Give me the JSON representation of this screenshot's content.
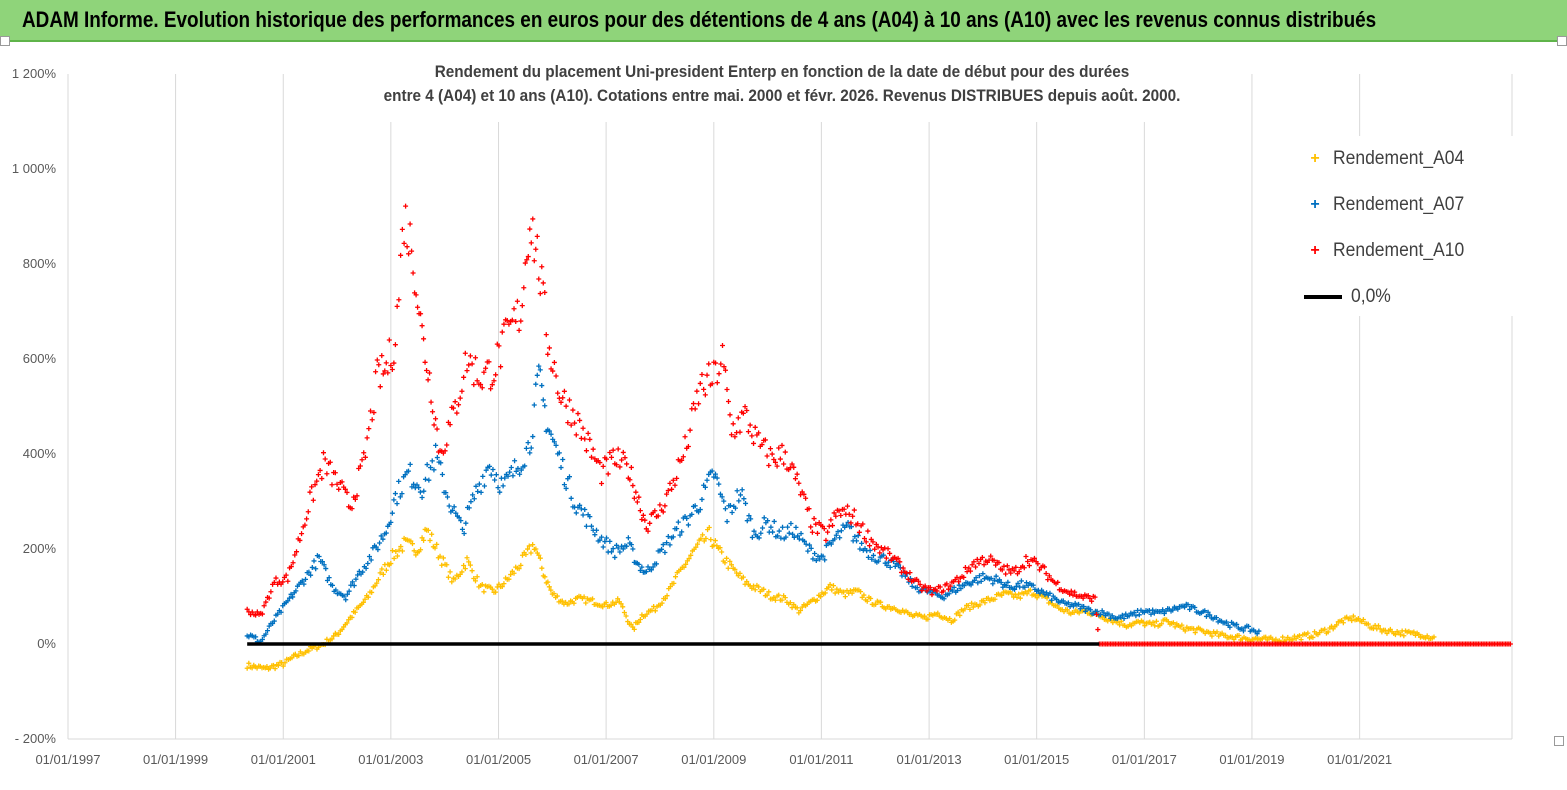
{
  "banner": {
    "title": "ADAM Informe. Evolution historique des performances en euros pour des détentions de 4 ans (A04) à 10 ans (A10) avec les revenus connus distribués",
    "background": "#8fd47a"
  },
  "chart_data": {
    "type": "scatter",
    "title_line1": "Rendement du placement Uni-president Enterp  en fonction de la date de début pour des durées",
    "title_line2": "entre 4 (A04) et 10 ans (A10).  Cotations entre mai. 2000 et févr. 2026. Revenus DISTRIBUES  depuis août. 2000.",
    "xlabel": "",
    "ylabel": "",
    "x_range": [
      "1997-01-01",
      "2023-11-01"
    ],
    "y_range": [
      -200,
      1200
    ],
    "y_unit": "%",
    "y_ticks": [
      {
        "value": 1200,
        "label": "1 200%"
      },
      {
        "value": 1000,
        "label": "1 000%"
      },
      {
        "value": 800,
        "label": "800%"
      },
      {
        "value": 600,
        "label": "600%"
      },
      {
        "value": 400,
        "label": "400%"
      },
      {
        "value": 200,
        "label": "200%"
      },
      {
        "value": 0,
        "label": "0%"
      },
      {
        "value": -200,
        "label": "- 200%"
      }
    ],
    "x_ticks": [
      {
        "date": "1997-01-01",
        "label": "01/01/1997"
      },
      {
        "date": "1999-01-01",
        "label": "01/01/1999"
      },
      {
        "date": "2001-01-01",
        "label": "01/01/2001"
      },
      {
        "date": "2003-01-01",
        "label": "01/01/2003"
      },
      {
        "date": "2005-01-01",
        "label": "01/01/2005"
      },
      {
        "date": "2007-01-01",
        "label": "01/01/2007"
      },
      {
        "date": "2009-01-01",
        "label": "01/01/2009"
      },
      {
        "date": "2011-01-01",
        "label": "01/01/2011"
      },
      {
        "date": "2013-01-01",
        "label": "01/01/2013"
      },
      {
        "date": "2015-01-01",
        "label": "01/01/2015"
      },
      {
        "date": "2017-01-01",
        "label": "01/01/2017"
      },
      {
        "date": "2019-01-01",
        "label": "01/01/2019"
      },
      {
        "date": "2021-01-01",
        "label": "01/01/2021"
      }
    ],
    "grid": "vertical-major",
    "legend_position": "top-right",
    "series": [
      {
        "name": "Rendement_A04",
        "color": "#ffc000",
        "marker": "+",
        "points": [
          [
            "2000-05-01",
            -45
          ],
          [
            "2000-09-01",
            -52
          ],
          [
            "2001-01-01",
            -42
          ],
          [
            "2001-03-01",
            -30
          ],
          [
            "2001-06-01",
            -15
          ],
          [
            "2001-10-01",
            0
          ],
          [
            "2002-01-01",
            20
          ],
          [
            "2002-04-01",
            55
          ],
          [
            "2002-08-01",
            100
          ],
          [
            "2002-11-01",
            150
          ],
          [
            "2003-01-01",
            180
          ],
          [
            "2003-04-01",
            210
          ],
          [
            "2003-07-01",
            200
          ],
          [
            "2003-09-01",
            240
          ],
          [
            "2003-12-01",
            185
          ],
          [
            "2004-03-01",
            130
          ],
          [
            "2004-06-01",
            175
          ],
          [
            "2004-09-01",
            120
          ],
          [
            "2004-12-01",
            110
          ],
          [
            "2005-03-01",
            135
          ],
          [
            "2005-06-01",
            170
          ],
          [
            "2005-09-01",
            210
          ],
          [
            "2005-11-01",
            150
          ],
          [
            "2006-01-01",
            105
          ],
          [
            "2006-04-01",
            85
          ],
          [
            "2006-07-01",
            95
          ],
          [
            "2006-10-01",
            90
          ],
          [
            "2007-01-01",
            82
          ],
          [
            "2007-04-01",
            90
          ],
          [
            "2007-07-01",
            30
          ],
          [
            "2007-09-01",
            60
          ],
          [
            "2007-12-01",
            75
          ],
          [
            "2008-03-01",
            110
          ],
          [
            "2008-06-01",
            160
          ],
          [
            "2008-09-01",
            200
          ],
          [
            "2008-12-01",
            230
          ],
          [
            "2009-02-01",
            195
          ],
          [
            "2009-05-01",
            160
          ],
          [
            "2009-08-01",
            130
          ],
          [
            "2009-11-01",
            115
          ],
          [
            "2010-02-01",
            100
          ],
          [
            "2010-05-01",
            95
          ],
          [
            "2010-08-01",
            70
          ],
          [
            "2010-11-01",
            90
          ],
          [
            "2011-03-01",
            120
          ],
          [
            "2011-06-01",
            105
          ],
          [
            "2011-09-01",
            110
          ],
          [
            "2011-12-01",
            90
          ],
          [
            "2012-03-01",
            80
          ],
          [
            "2012-06-01",
            75
          ],
          [
            "2012-09-01",
            60
          ],
          [
            "2012-12-01",
            55
          ],
          [
            "2013-03-01",
            65
          ],
          [
            "2013-06-01",
            50
          ],
          [
            "2013-09-01",
            75
          ],
          [
            "2013-12-01",
            85
          ],
          [
            "2014-03-01",
            95
          ],
          [
            "2014-06-01",
            105
          ],
          [
            "2014-09-01",
            100
          ],
          [
            "2014-12-01",
            110
          ],
          [
            "2015-03-01",
            95
          ],
          [
            "2015-06-01",
            75
          ],
          [
            "2015-09-01",
            65
          ],
          [
            "2015-12-01",
            70
          ],
          [
            "2016-03-01",
            60
          ],
          [
            "2016-06-01",
            50
          ],
          [
            "2016-09-01",
            40
          ],
          [
            "2016-12-01",
            45
          ],
          [
            "2017-03-01",
            40
          ],
          [
            "2017-06-01",
            48
          ],
          [
            "2017-09-01",
            35
          ],
          [
            "2017-12-01",
            30
          ],
          [
            "2018-03-01",
            25
          ],
          [
            "2018-06-01",
            18
          ],
          [
            "2018-09-01",
            15
          ],
          [
            "2018-12-01",
            12
          ],
          [
            "2019-03-01",
            10
          ],
          [
            "2019-06-01",
            8
          ],
          [
            "2019-09-01",
            12
          ],
          [
            "2019-12-01",
            15
          ],
          [
            "2020-03-01",
            20
          ],
          [
            "2020-06-01",
            30
          ],
          [
            "2020-09-01",
            48
          ],
          [
            "2020-12-01",
            55
          ],
          [
            "2021-03-01",
            40
          ],
          [
            "2021-06-01",
            30
          ],
          [
            "2021-09-01",
            25
          ],
          [
            "2021-12-01",
            22
          ],
          [
            "2022-03-01",
            20
          ],
          [
            "2022-06-01",
            12
          ]
        ]
      },
      {
        "name": "Rendement_A07",
        "color": "#0070c0",
        "marker": "+",
        "points": [
          [
            "2000-05-01",
            20
          ],
          [
            "2000-08-01",
            5
          ],
          [
            "2000-11-01",
            50
          ],
          [
            "2001-02-01",
            90
          ],
          [
            "2001-06-01",
            140
          ],
          [
            "2001-09-01",
            180
          ],
          [
            "2001-12-01",
            120
          ],
          [
            "2002-03-01",
            100
          ],
          [
            "2002-06-01",
            150
          ],
          [
            "2002-09-01",
            190
          ],
          [
            "2002-12-01",
            240
          ],
          [
            "2003-02-01",
            310
          ],
          [
            "2003-05-01",
            360
          ],
          [
            "2003-08-01",
            330
          ],
          [
            "2003-11-01",
            395
          ],
          [
            "2004-02-01",
            300
          ],
          [
            "2004-05-01",
            240
          ],
          [
            "2004-08-01",
            320
          ],
          [
            "2004-11-01",
            380
          ],
          [
            "2005-02-01",
            330
          ],
          [
            "2005-05-01",
            370
          ],
          [
            "2005-08-01",
            420
          ],
          [
            "2005-10-01",
            560
          ],
          [
            "2005-12-01",
            460
          ],
          [
            "2006-03-01",
            380
          ],
          [
            "2006-06-01",
            300
          ],
          [
            "2006-09-01",
            260
          ],
          [
            "2006-12-01",
            220
          ],
          [
            "2007-03-01",
            195
          ],
          [
            "2007-06-01",
            210
          ],
          [
            "2007-08-01",
            170
          ],
          [
            "2007-10-01",
            150
          ],
          [
            "2008-01-01",
            190
          ],
          [
            "2008-04-01",
            230
          ],
          [
            "2008-07-01",
            260
          ],
          [
            "2008-10-01",
            300
          ],
          [
            "2009-01-01",
            360
          ],
          [
            "2009-04-01",
            270
          ],
          [
            "2009-07-01",
            320
          ],
          [
            "2009-10-01",
            230
          ],
          [
            "2010-01-01",
            255
          ],
          [
            "2010-04-01",
            230
          ],
          [
            "2010-07-01",
            240
          ],
          [
            "2010-10-01",
            200
          ],
          [
            "2011-01-01",
            180
          ],
          [
            "2011-04-01",
            220
          ],
          [
            "2011-07-01",
            245
          ],
          [
            "2011-10-01",
            205
          ],
          [
            "2012-01-01",
            185
          ],
          [
            "2012-04-01",
            175
          ],
          [
            "2012-07-01",
            150
          ],
          [
            "2012-10-01",
            120
          ],
          [
            "2013-01-01",
            110
          ],
          [
            "2013-04-01",
            100
          ],
          [
            "2013-07-01",
            115
          ],
          [
            "2013-10-01",
            130
          ],
          [
            "2014-01-01",
            140
          ],
          [
            "2014-04-01",
            135
          ],
          [
            "2014-07-01",
            120
          ],
          [
            "2014-10-01",
            125
          ],
          [
            "2015-01-01",
            115
          ],
          [
            "2015-04-01",
            100
          ],
          [
            "2015-07-01",
            85
          ],
          [
            "2015-10-01",
            80
          ],
          [
            "2016-01-01",
            70
          ],
          [
            "2016-04-01",
            65
          ],
          [
            "2016-07-01",
            55
          ],
          [
            "2016-10-01",
            60
          ],
          [
            "2017-01-01",
            70
          ],
          [
            "2017-04-01",
            65
          ],
          [
            "2017-07-01",
            72
          ],
          [
            "2017-10-01",
            80
          ],
          [
            "2018-01-01",
            70
          ],
          [
            "2018-04-01",
            60
          ],
          [
            "2018-07-01",
            45
          ],
          [
            "2018-10-01",
            35
          ],
          [
            "2019-01-01",
            30
          ],
          [
            "2019-03-01",
            22
          ]
        ]
      },
      {
        "name": "Rendement_A10",
        "color": "#ff0000",
        "marker": "+",
        "points": [
          [
            "2000-05-01",
            70
          ],
          [
            "2000-08-01",
            60
          ],
          [
            "2000-11-01",
            130
          ],
          [
            "2001-02-01",
            140
          ],
          [
            "2001-04-01",
            200
          ],
          [
            "2001-07-01",
            300
          ],
          [
            "2001-10-01",
            380
          ],
          [
            "2002-01-01",
            340
          ],
          [
            "2002-04-01",
            290
          ],
          [
            "2002-07-01",
            380
          ],
          [
            "2002-10-01",
            560
          ],
          [
            "2002-12-01",
            580
          ],
          [
            "2003-02-01",
            640
          ],
          [
            "2003-04-01",
            900
          ],
          [
            "2003-06-01",
            820
          ],
          [
            "2003-08-01",
            650
          ],
          [
            "2003-10-01",
            540
          ],
          [
            "2003-12-01",
            400
          ],
          [
            "2004-03-01",
            480
          ],
          [
            "2004-06-01",
            600
          ],
          [
            "2004-09-01",
            560
          ],
          [
            "2004-12-01",
            580
          ],
          [
            "2005-03-01",
            650
          ],
          [
            "2005-06-01",
            700
          ],
          [
            "2005-08-01",
            900
          ],
          [
            "2005-10-01",
            800
          ],
          [
            "2005-12-01",
            640
          ],
          [
            "2006-03-01",
            520
          ],
          [
            "2006-06-01",
            480
          ],
          [
            "2006-09-01",
            420
          ],
          [
            "2006-12-01",
            360
          ],
          [
            "2007-03-01",
            390
          ],
          [
            "2007-06-01",
            370
          ],
          [
            "2007-08-01",
            310
          ],
          [
            "2007-10-01",
            250
          ],
          [
            "2008-01-01",
            280
          ],
          [
            "2008-04-01",
            340
          ],
          [
            "2008-07-01",
            420
          ],
          [
            "2008-10-01",
            540
          ],
          [
            "2009-01-01",
            560
          ],
          [
            "2009-03-01",
            600
          ],
          [
            "2009-05-01",
            450
          ],
          [
            "2009-08-01",
            480
          ],
          [
            "2009-11-01",
            420
          ],
          [
            "2010-02-01",
            390
          ],
          [
            "2010-05-01",
            400
          ],
          [
            "2010-08-01",
            330
          ],
          [
            "2010-11-01",
            250
          ],
          [
            "2011-02-01",
            230
          ],
          [
            "2011-05-01",
            280
          ],
          [
            "2011-08-01",
            270
          ],
          [
            "2011-11-01",
            230
          ],
          [
            "2012-02-01",
            200
          ],
          [
            "2012-05-01",
            180
          ],
          [
            "2012-08-01",
            150
          ],
          [
            "2012-11-01",
            120
          ],
          [
            "2013-02-01",
            110
          ],
          [
            "2013-05-01",
            120
          ],
          [
            "2013-08-01",
            140
          ],
          [
            "2013-11-01",
            170
          ],
          [
            "2014-02-01",
            180
          ],
          [
            "2014-05-01",
            160
          ],
          [
            "2014-08-01",
            150
          ],
          [
            "2014-11-01",
            180
          ],
          [
            "2015-02-01",
            160
          ],
          [
            "2015-05-01",
            130
          ],
          [
            "2015-08-01",
            110
          ],
          [
            "2015-11-01",
            100
          ],
          [
            "2016-02-01",
            95
          ],
          [
            "2016-03-01",
            0
          ],
          [
            "2017-01-01",
            0
          ],
          [
            "2018-01-01",
            0
          ],
          [
            "2019-01-01",
            0
          ],
          [
            "2020-01-01",
            0
          ],
          [
            "2021-01-01",
            0
          ],
          [
            "2022-01-01",
            0
          ],
          [
            "2023-01-01",
            0
          ],
          [
            "2023-11-01",
            0
          ]
        ]
      },
      {
        "name": "0,0%",
        "color": "#000000",
        "marker": "line",
        "points": [
          [
            "2000-05-01",
            0
          ],
          [
            "2016-03-01",
            0
          ]
        ]
      }
    ]
  }
}
